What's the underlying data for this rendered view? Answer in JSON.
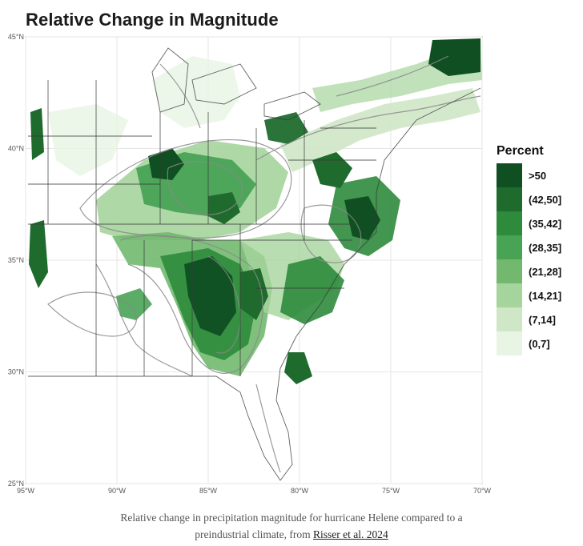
{
  "title": "Relative Change in Magnitude",
  "axes": {
    "lat_ticks": [
      "45°N",
      "40°N",
      "35°N",
      "30°N",
      "25°N"
    ],
    "lon_ticks": [
      "95°W",
      "90°W",
      "85°W",
      "80°W",
      "75°W",
      "70°W"
    ],
    "lon_range": [
      -95,
      -70
    ],
    "lat_range": [
      25,
      45
    ]
  },
  "legend": {
    "title": "Percent",
    "items": [
      {
        "label": ">50",
        "color": "#0f4f22"
      },
      {
        "label": "(42,50]",
        "color": "#1f6b2e"
      },
      {
        "label": "(35,42]",
        "color": "#2e8b3c"
      },
      {
        "label": "(28,35]",
        "color": "#48a355"
      },
      {
        "label": "(21,28]",
        "color": "#72b96f"
      },
      {
        "label": "(14,21]",
        "color": "#a6d49d"
      },
      {
        "label": "(7,14]",
        "color": "#cfe7c6"
      },
      {
        "label": "(0,7]",
        "color": "#e9f5e4"
      }
    ]
  },
  "caption": {
    "text_line1": "Relative change in precipitation magnitude for hurricane Helene compared to a",
    "text_line2": "preindustrial climate, from",
    "link_text": "Risser et al. 2024"
  }
}
